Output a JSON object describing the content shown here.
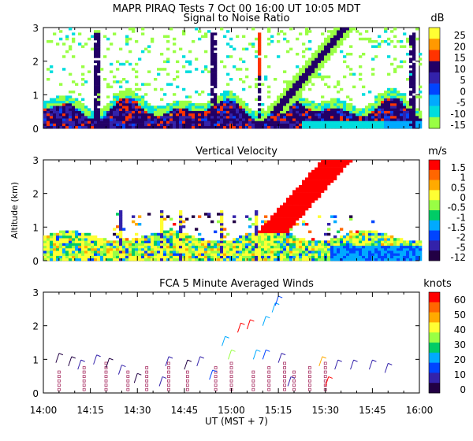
{
  "title": "MAPR PIRAQ Tests  7 Oct 00  16:00 UT  10:05  MDT",
  "ylabel": "Altitude (km)",
  "xlabel": "UT  (MST + 7)",
  "x_ticks": [
    "14:00",
    "14:15",
    "14:30",
    "14:45",
    "15:00",
    "15:15",
    "15:30",
    "15:45",
    "16:00"
  ],
  "chart_data": [
    {
      "type": "heatmap",
      "title": "Signal to Noise Ratio",
      "units": "dB",
      "x": [
        "14:00",
        "16:00"
      ],
      "ylim": [
        0,
        3
      ],
      "y_ticks": [
        "0",
        "1",
        "2",
        "3"
      ],
      "colorbar_labels": [
        "25",
        "20",
        "15",
        "10",
        "5",
        "0",
        "-5",
        "-10",
        "-15"
      ],
      "colors": [
        "#ffff33",
        "#ff9900",
        "#ff3300",
        "#220066",
        "#3322aa",
        "#0044ff",
        "#00aaff",
        "#00dddd",
        "#99ff44"
      ]
    },
    {
      "type": "heatmap",
      "title": "Vertical Velocity",
      "units": "m/s",
      "x": [
        "14:00",
        "16:00"
      ],
      "ylim": [
        0,
        3
      ],
      "y_ticks": [
        "0",
        "1",
        "2",
        "3"
      ],
      "colorbar_labels": [
        "1.5",
        "1",
        "0.5",
        "0",
        "-0.5",
        "-1",
        "-1.5",
        "-2",
        "-5",
        "-12"
      ],
      "colors": [
        "#ff0000",
        "#ff6600",
        "#ffaa00",
        "#ffff33",
        "#99ff44",
        "#00cc66",
        "#00aaff",
        "#0044ff",
        "#3322aa",
        "#220044"
      ]
    },
    {
      "type": "scatter",
      "title": "FCA 5 Minute Averaged Winds",
      "units": "knots",
      "x": [
        "14:00",
        "16:00"
      ],
      "ylim": [
        0,
        3
      ],
      "y_ticks": [
        "0",
        "1",
        "2",
        "3"
      ],
      "colorbar_labels": [
        "60",
        "50",
        "40",
        "30",
        "20",
        "10",
        "0"
      ],
      "colors": [
        "#ff0000",
        "#ff6600",
        "#ffaa00",
        "#ffff33",
        "#99ff44",
        "#00cc66",
        "#00aaff",
        "#0044ff",
        "#3322aa",
        "#220044"
      ]
    }
  ]
}
